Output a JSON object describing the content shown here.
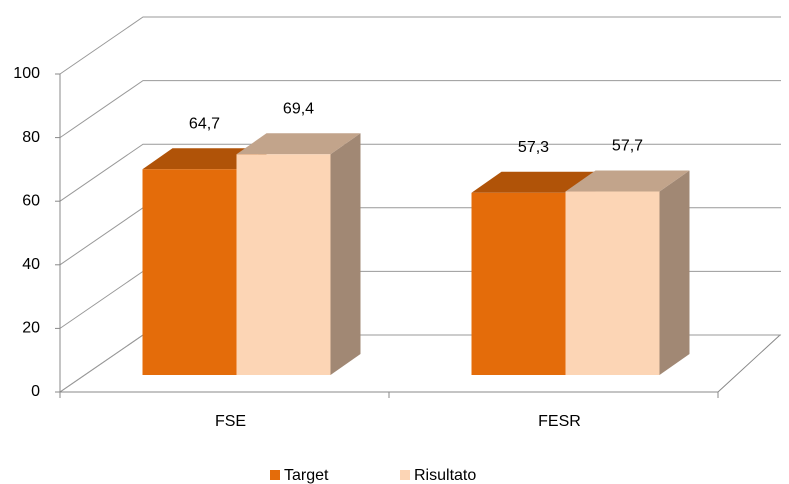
{
  "chart_data": {
    "type": "bar3d",
    "categories": [
      "FSE",
      "FESR"
    ],
    "series": [
      {
        "name": "Target",
        "color": "#e46c0a",
        "values": [
          64.7,
          57.3
        ],
        "value_labels": [
          "64,7",
          "57,3"
        ]
      },
      {
        "name": "Risultato",
        "color": "#fcd5b5",
        "values": [
          69.4,
          57.7
        ],
        "value_labels": [
          "69,4",
          "57,7"
        ]
      }
    ],
    "ylim": [
      0,
      100
    ],
    "yticks": [
      0,
      20,
      40,
      60,
      80,
      100
    ],
    "grid": true,
    "legend": "bottom"
  }
}
